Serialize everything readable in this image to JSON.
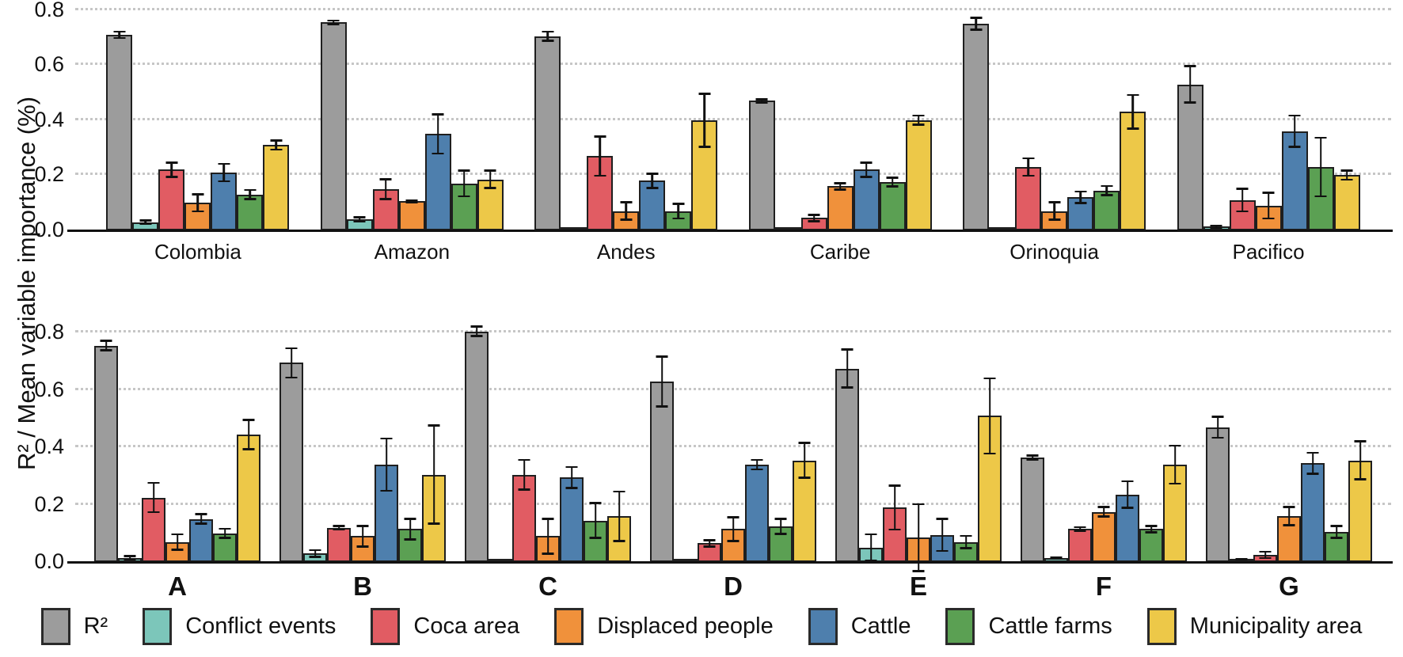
{
  "figure": {
    "y_axis_label": "R² / Mean variable importance (%)",
    "background": "#ffffff",
    "gridline_color": "#c6c6c6",
    "axis_color": "#111111",
    "bar_border_color": "#1f1f1f"
  },
  "legend": {
    "items": [
      {
        "label": "R²",
        "color": "#9C9C9C"
      },
      {
        "label": "Conflict events",
        "color": "#7CC6BA"
      },
      {
        "label": "Coca area",
        "color": "#E15C63"
      },
      {
        "label": "Displaced people",
        "color": "#F0913B"
      },
      {
        "label": "Cattle",
        "color": "#4E7FAD"
      },
      {
        "label": "Cattle farms",
        "color": "#5BA053"
      },
      {
        "label": "Municipality area",
        "color": "#EDC848"
      }
    ]
  },
  "chart_data": [
    {
      "type": "bar",
      "panel": "regions",
      "title": "",
      "xlabel": "",
      "ylabel": "R² / Mean variable importance (%)",
      "ylim": [
        0,
        0.8
      ],
      "yticks": [
        0.0,
        0.2,
        0.4,
        0.6,
        0.8
      ],
      "grid": "dotted horizontal",
      "error_bars": true,
      "categories": [
        "Colombia",
        "Amazon",
        "Andes",
        "Caribe",
        "Orinoquia",
        "Pacifico"
      ],
      "series": [
        {
          "name": "R²",
          "color": "#9C9C9C",
          "values": [
            0.71,
            0.755,
            0.705,
            0.47,
            0.75,
            0.53
          ],
          "errors": [
            0.015,
            0.01,
            0.02,
            0.01,
            0.025,
            0.07
          ]
        },
        {
          "name": "Conflict events",
          "color": "#7CC6BA",
          "values": [
            0.03,
            0.04,
            0.005,
            0.005,
            0.01,
            0.013
          ],
          "errors": [
            0.01,
            0.012,
            0.0,
            0.0,
            0.0,
            0.008
          ]
        },
        {
          "name": "Coca area",
          "color": "#E15C63",
          "values": [
            0.22,
            0.15,
            0.27,
            0.045,
            0.23,
            0.11
          ],
          "errors": [
            0.03,
            0.04,
            0.075,
            0.015,
            0.035,
            0.045
          ]
        },
        {
          "name": "Displaced people",
          "color": "#F0913B",
          "values": [
            0.1,
            0.105,
            0.07,
            0.16,
            0.07,
            0.09
          ],
          "errors": [
            0.035,
            0.006,
            0.035,
            0.015,
            0.035,
            0.05
          ]
        },
        {
          "name": "Cattle",
          "color": "#4E7FAD",
          "values": [
            0.21,
            0.35,
            0.18,
            0.22,
            0.12,
            0.36
          ],
          "errors": [
            0.035,
            0.075,
            0.03,
            0.03,
            0.025,
            0.06
          ]
        },
        {
          "name": "Cattle farms",
          "color": "#5BA053",
          "values": [
            0.13,
            0.17,
            0.07,
            0.175,
            0.145,
            0.23
          ],
          "errors": [
            0.02,
            0.05,
            0.03,
            0.02,
            0.02,
            0.11
          ]
        },
        {
          "name": "Municipality area",
          "color": "#EDC848",
          "values": [
            0.31,
            0.185,
            0.4,
            0.4,
            0.43,
            0.2
          ],
          "errors": [
            0.02,
            0.035,
            0.1,
            0.02,
            0.065,
            0.02
          ]
        }
      ]
    },
    {
      "type": "bar",
      "panel": "clusters",
      "title": "",
      "xlabel": "",
      "ylabel": "R² / Mean variable importance (%)",
      "ylim": [
        0,
        0.8
      ],
      "yticks": [
        0.0,
        0.2,
        0.4,
        0.6,
        0.8
      ],
      "grid": "dotted horizontal",
      "error_bars": true,
      "categories": [
        "A",
        "B",
        "C",
        "D",
        "E",
        "F",
        "G"
      ],
      "series": [
        {
          "name": "R²",
          "color": "#9C9C9C",
          "values": [
            0.755,
            0.695,
            0.805,
            0.63,
            0.675,
            0.365,
            0.47
          ],
          "errors": [
            0.02,
            0.055,
            0.02,
            0.09,
            0.07,
            0.01,
            0.04
          ]
        },
        {
          "name": "Conflict events",
          "color": "#7CC6BA",
          "values": [
            0.015,
            0.03,
            0.005,
            0.005,
            0.05,
            0.015,
            0.01
          ],
          "errors": [
            0.01,
            0.015,
            0.0,
            0.0,
            0.05,
            0.005,
            0.005
          ]
        },
        {
          "name": "Coca area",
          "color": "#E15C63",
          "values": [
            0.225,
            0.12,
            0.305,
            0.065,
            0.19,
            0.115,
            0.025
          ],
          "errors": [
            0.055,
            0.01,
            0.055,
            0.015,
            0.08,
            0.01,
            0.015
          ]
        },
        {
          "name": "Displaced people",
          "color": "#F0913B",
          "values": [
            0.07,
            0.09,
            0.09,
            0.115,
            0.085,
            0.175,
            0.16
          ],
          "errors": [
            0.03,
            0.04,
            0.065,
            0.045,
            0.12,
            0.02,
            0.035
          ]
        },
        {
          "name": "Cattle",
          "color": "#4E7FAD",
          "values": [
            0.15,
            0.34,
            0.295,
            0.34,
            0.095,
            0.235,
            0.345
          ],
          "errors": [
            0.02,
            0.095,
            0.04,
            0.02,
            0.06,
            0.05,
            0.04
          ]
        },
        {
          "name": "Cattle farms",
          "color": "#5BA053",
          "values": [
            0.1,
            0.115,
            0.145,
            0.125,
            0.07,
            0.115,
            0.105
          ],
          "errors": [
            0.02,
            0.04,
            0.065,
            0.03,
            0.025,
            0.015,
            0.025
          ]
        },
        {
          "name": "Municipality area",
          "color": "#EDC848",
          "values": [
            0.445,
            0.305,
            0.16,
            0.355,
            0.51,
            0.34,
            0.355
          ],
          "errors": [
            0.055,
            0.175,
            0.09,
            0.065,
            0.135,
            0.07,
            0.07
          ]
        }
      ]
    }
  ]
}
